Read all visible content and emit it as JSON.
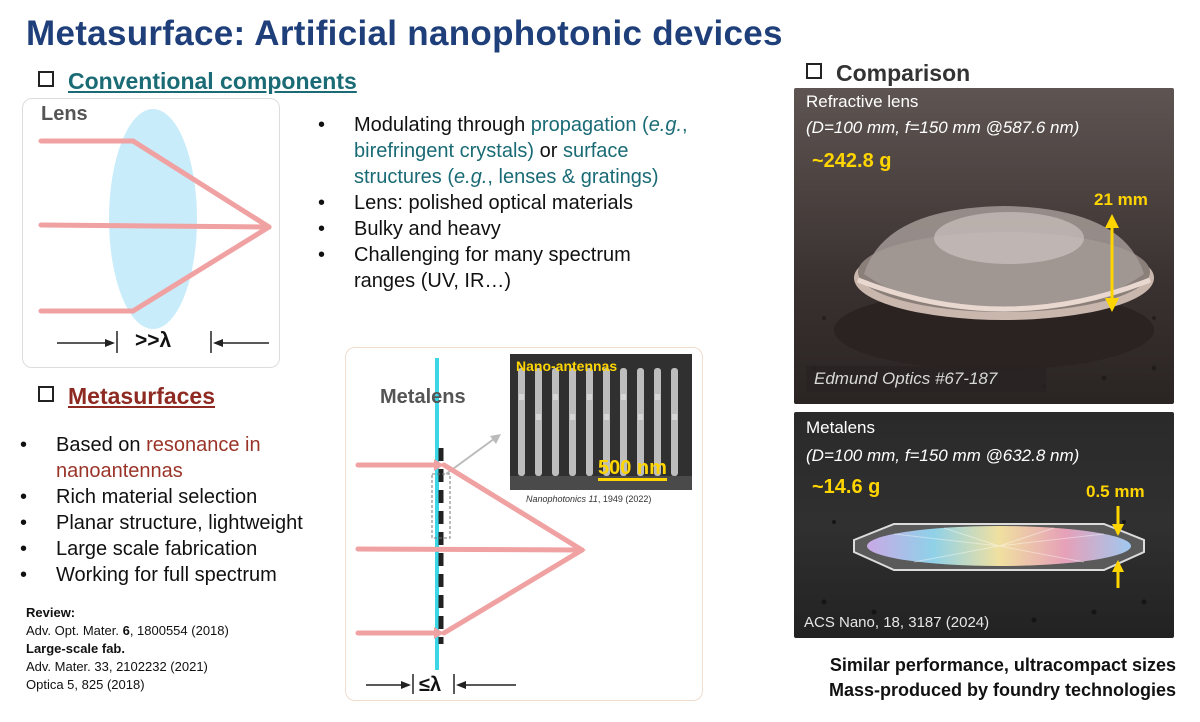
{
  "title": "Metasurface: Artificial nanophotonic devices",
  "conventional": {
    "heading": "Conventional components",
    "panel_label": "Lens",
    "dimension": ">>λ",
    "bullets": [
      {
        "parts": [
          {
            "t": "Modulating through ",
            "c": "plain"
          },
          {
            "t": "propagation",
            "c": "teal"
          },
          {
            "t": " ",
            "c": "plain"
          },
          {
            "t": "(",
            "c": "teal"
          },
          {
            "t": "e.g.",
            "c": "teal-i"
          },
          {
            "t": ", birefringent crystals)",
            "c": "teal"
          },
          {
            "t": " or ",
            "c": "plain"
          },
          {
            "t": "surface structures (",
            "c": "teal"
          },
          {
            "t": "e.g.",
            "c": "teal-i"
          },
          {
            "t": ", lenses & gratings)",
            "c": "teal"
          }
        ]
      },
      {
        "parts": [
          {
            "t": "Lens: polished optical materials",
            "c": "plain"
          }
        ]
      },
      {
        "parts": [
          {
            "t": "Bulky and heavy",
            "c": "plain"
          }
        ]
      },
      {
        "parts": [
          {
            "t": "Challenging for many spectrum ranges (UV, IR…)",
            "c": "plain"
          }
        ]
      }
    ]
  },
  "metasurfaces": {
    "heading": "Metasurfaces",
    "bullets": [
      {
        "parts": [
          {
            "t": "Based on ",
            "c": "plain"
          },
          {
            "t": "resonance in nanoantennas",
            "c": "red"
          }
        ]
      },
      {
        "parts": [
          {
            "t": "Rich material selection",
            "c": "plain"
          }
        ]
      },
      {
        "parts": [
          {
            "t": "Planar structure, lightweight",
            "c": "plain"
          }
        ]
      },
      {
        "parts": [
          {
            "t": "Large scale fabrication",
            "c": "plain"
          }
        ]
      },
      {
        "parts": [
          {
            "t": "Working for full spectrum",
            "c": "plain"
          }
        ]
      }
    ],
    "refs": {
      "review_label": "Review:",
      "review_1_prefix": "Adv. Opt. Mater. ",
      "review_1_vol": "6",
      "review_1_rest": ", 1800554 (2018)",
      "fab_label": "Large-scale fab.",
      "fab_1": "Adv. Mater. 33, 2102232 (2021)",
      "fab_2": "Optica 5, 825 (2018)"
    }
  },
  "metalens_figure": {
    "label": "Metalens",
    "inset_label": "Nano-antennas",
    "scale_bar": "500 nm",
    "citation_journal": "Nanophotonics 11",
    "citation_rest": ", 1949 (2022)",
    "dimension": "≤λ"
  },
  "comparison": {
    "heading": "Comparison",
    "refractive": {
      "name": "Refractive lens",
      "spec": "(D=100 mm, f=150 mm @587.6 nm)",
      "weight": "~242.8 g",
      "thickness": "21 mm",
      "source": "Edmund Optics #67-187"
    },
    "metalens": {
      "name": "Metalens",
      "spec": "(D=100 mm, f=150 mm @632.8 nm)",
      "weight": "~14.6 g",
      "thickness": "0.5 mm",
      "source": "ACS Nano, 18, 3187 (2024)"
    },
    "summary_1": "Similar performance, ultracompact sizes",
    "summary_2": "Mass-produced by foundry technologies"
  },
  "colors": {
    "title": "#1f3f7a",
    "teal": "#1a6b75",
    "red": "#8e2a22",
    "ray": "#f0a1a1",
    "lens_fill": "#c9ecfb",
    "highlight": "#ffd500"
  }
}
